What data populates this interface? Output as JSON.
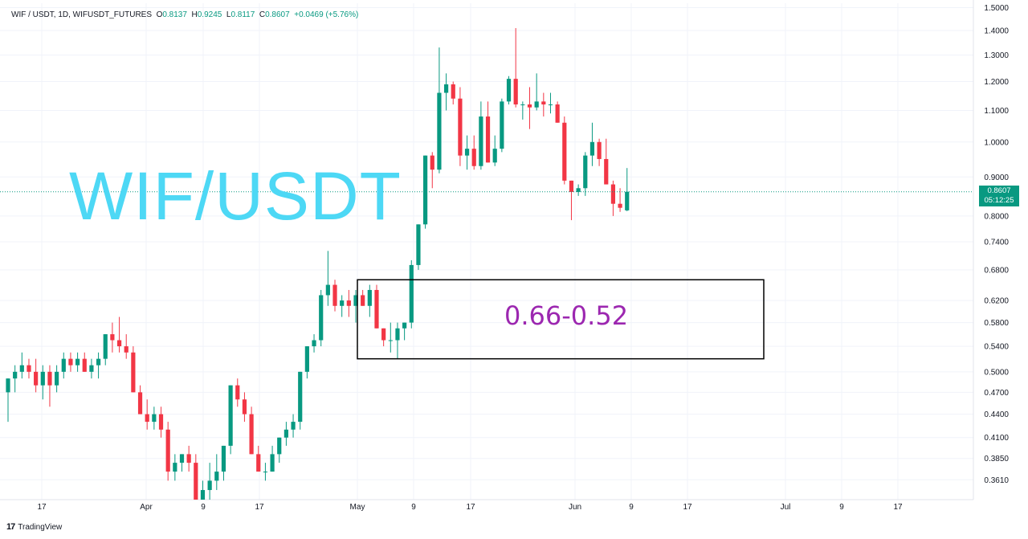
{
  "header": {
    "symbol": "WIF / USDT, 1D, WIFUSDT_FUTURES",
    "o_label": "O",
    "o_value": "0.8137",
    "h_label": "H",
    "h_value": "0.9245",
    "l_label": "L",
    "l_value": "0.8117",
    "c_label": "C",
    "c_value": "0.8607",
    "change": "+0.0469 (+5.76%)"
  },
  "watermark": "WIF/USDT",
  "zone_label": "0.66-0.52",
  "price_tag": {
    "price": "0.8607",
    "countdown": "05:12:25"
  },
  "footer": {
    "brand": "TradingView",
    "logo": "17"
  },
  "colors": {
    "up": "#089981",
    "down": "#f23645",
    "watermark": "#4dd8f5",
    "zone_text": "#9c27b0",
    "grid": "#f0f3fa"
  },
  "chart_data": {
    "type": "candlestick",
    "symbol": "WIFUSDT",
    "y_scale": "log",
    "ylim": [
      0.34,
      1.52
    ],
    "y_ticks": [
      1.5,
      1.4,
      1.3,
      1.2,
      1.1,
      1.0,
      0.9,
      0.8,
      0.74,
      0.68,
      0.62,
      0.58,
      0.54,
      0.5,
      0.47,
      0.44,
      0.41,
      0.385,
      0.361
    ],
    "y_tick_labels": [
      "1.5000",
      "1.4000",
      "1.3000",
      "1.2000",
      "1.1000",
      "1.0000",
      "0.9000",
      "0.8000",
      "0.7400",
      "0.6800",
      "0.6200",
      "0.5800",
      "0.5400",
      "0.5000",
      "0.4700",
      "0.4400",
      "0.4100",
      "0.3850",
      "0.3610"
    ],
    "x_tick_labels": [
      "17",
      "Apr",
      "9",
      "17",
      "May",
      "9",
      "17",
      "Jun",
      "9",
      "17",
      "Jul",
      "9",
      "17"
    ],
    "zone": {
      "top": 0.66,
      "bottom": 0.52,
      "label": "0.66-0.52"
    },
    "last_price": 0.8607,
    "candles": [
      [
        0.47,
        0.49,
        0.43,
        0.49
      ],
      [
        0.49,
        0.51,
        0.47,
        0.5
      ],
      [
        0.5,
        0.53,
        0.49,
        0.51
      ],
      [
        0.51,
        0.52,
        0.49,
        0.5
      ],
      [
        0.5,
        0.52,
        0.47,
        0.48
      ],
      [
        0.48,
        0.51,
        0.46,
        0.5
      ],
      [
        0.5,
        0.51,
        0.45,
        0.48
      ],
      [
        0.48,
        0.51,
        0.47,
        0.5
      ],
      [
        0.5,
        0.53,
        0.49,
        0.52
      ],
      [
        0.52,
        0.53,
        0.5,
        0.51
      ],
      [
        0.51,
        0.53,
        0.5,
        0.52
      ],
      [
        0.52,
        0.53,
        0.5,
        0.5
      ],
      [
        0.5,
        0.52,
        0.49,
        0.51
      ],
      [
        0.51,
        0.53,
        0.49,
        0.52
      ],
      [
        0.52,
        0.56,
        0.51,
        0.56
      ],
      [
        0.56,
        0.58,
        0.53,
        0.55
      ],
      [
        0.55,
        0.59,
        0.53,
        0.54
      ],
      [
        0.54,
        0.56,
        0.52,
        0.53
      ],
      [
        0.53,
        0.54,
        0.47,
        0.47
      ],
      [
        0.47,
        0.48,
        0.44,
        0.44
      ],
      [
        0.44,
        0.46,
        0.42,
        0.43
      ],
      [
        0.43,
        0.45,
        0.42,
        0.44
      ],
      [
        0.44,
        0.45,
        0.41,
        0.42
      ],
      [
        0.42,
        0.43,
        0.36,
        0.37
      ],
      [
        0.37,
        0.39,
        0.36,
        0.38
      ],
      [
        0.38,
        0.39,
        0.37,
        0.39
      ],
      [
        0.39,
        0.4,
        0.37,
        0.38
      ],
      [
        0.38,
        0.39,
        0.34,
        0.34
      ],
      [
        0.34,
        0.36,
        0.34,
        0.35
      ],
      [
        0.35,
        0.38,
        0.34,
        0.36
      ],
      [
        0.36,
        0.39,
        0.35,
        0.37
      ],
      [
        0.37,
        0.4,
        0.36,
        0.4
      ],
      [
        0.4,
        0.48,
        0.39,
        0.48
      ],
      [
        0.48,
        0.49,
        0.45,
        0.46
      ],
      [
        0.46,
        0.47,
        0.43,
        0.44
      ],
      [
        0.44,
        0.45,
        0.39,
        0.39
      ],
      [
        0.39,
        0.4,
        0.37,
        0.37
      ],
      [
        0.37,
        0.38,
        0.36,
        0.37
      ],
      [
        0.37,
        0.4,
        0.37,
        0.39
      ],
      [
        0.39,
        0.41,
        0.38,
        0.41
      ],
      [
        0.41,
        0.43,
        0.4,
        0.42
      ],
      [
        0.42,
        0.44,
        0.41,
        0.43
      ],
      [
        0.43,
        0.5,
        0.42,
        0.5
      ],
      [
        0.5,
        0.54,
        0.49,
        0.54
      ],
      [
        0.54,
        0.56,
        0.53,
        0.55
      ],
      [
        0.55,
        0.64,
        0.54,
        0.63
      ],
      [
        0.63,
        0.72,
        0.61,
        0.65
      ],
      [
        0.65,
        0.66,
        0.6,
        0.61
      ],
      [
        0.61,
        0.63,
        0.59,
        0.62
      ],
      [
        0.62,
        0.64,
        0.59,
        0.61
      ],
      [
        0.61,
        0.64,
        0.58,
        0.63
      ],
      [
        0.63,
        0.64,
        0.61,
        0.61
      ],
      [
        0.61,
        0.65,
        0.59,
        0.64
      ],
      [
        0.64,
        0.65,
        0.57,
        0.57
      ],
      [
        0.57,
        0.57,
        0.54,
        0.55
      ],
      [
        0.55,
        0.58,
        0.53,
        0.55
      ],
      [
        0.55,
        0.58,
        0.52,
        0.57
      ],
      [
        0.57,
        0.58,
        0.55,
        0.58
      ],
      [
        0.58,
        0.7,
        0.57,
        0.69
      ],
      [
        0.69,
        0.78,
        0.68,
        0.78
      ],
      [
        0.78,
        0.96,
        0.77,
        0.96
      ],
      [
        0.96,
        0.97,
        0.87,
        0.92
      ],
      [
        0.92,
        1.33,
        0.91,
        1.16
      ],
      [
        1.16,
        1.23,
        1.1,
        1.19
      ],
      [
        1.19,
        1.2,
        1.12,
        1.14
      ],
      [
        1.14,
        1.18,
        0.93,
        0.96
      ],
      [
        0.96,
        1.02,
        0.92,
        0.98
      ],
      [
        0.98,
        1.02,
        0.92,
        0.93
      ],
      [
        0.93,
        1.13,
        0.92,
        1.08
      ],
      [
        1.08,
        1.13,
        0.94,
        0.94
      ],
      [
        0.94,
        1.02,
        0.93,
        0.98
      ],
      [
        0.98,
        1.14,
        0.97,
        1.13
      ],
      [
        1.13,
        1.22,
        1.12,
        1.21
      ],
      [
        1.21,
        1.41,
        1.11,
        1.12
      ],
      [
        1.12,
        1.13,
        1.07,
        1.12
      ],
      [
        1.12,
        1.18,
        1.04,
        1.11
      ],
      [
        1.11,
        1.23,
        1.1,
        1.13
      ],
      [
        1.13,
        1.16,
        1.08,
        1.12
      ],
      [
        1.12,
        1.16,
        1.09,
        1.12
      ],
      [
        1.12,
        1.13,
        1.06,
        1.06
      ],
      [
        1.06,
        1.08,
        0.88,
        0.89
      ],
      [
        0.89,
        0.89,
        0.79,
        0.86
      ],
      [
        0.86,
        0.88,
        0.85,
        0.87
      ],
      [
        0.87,
        0.97,
        0.85,
        0.96
      ],
      [
        0.96,
        1.06,
        0.93,
        1.0
      ],
      [
        1.0,
        1.01,
        0.93,
        0.95
      ],
      [
        0.95,
        1.01,
        0.88,
        0.88
      ],
      [
        0.88,
        0.89,
        0.8,
        0.83
      ],
      [
        0.83,
        0.87,
        0.81,
        0.82
      ],
      [
        0.8137,
        0.9245,
        0.8117,
        0.8607
      ]
    ]
  }
}
